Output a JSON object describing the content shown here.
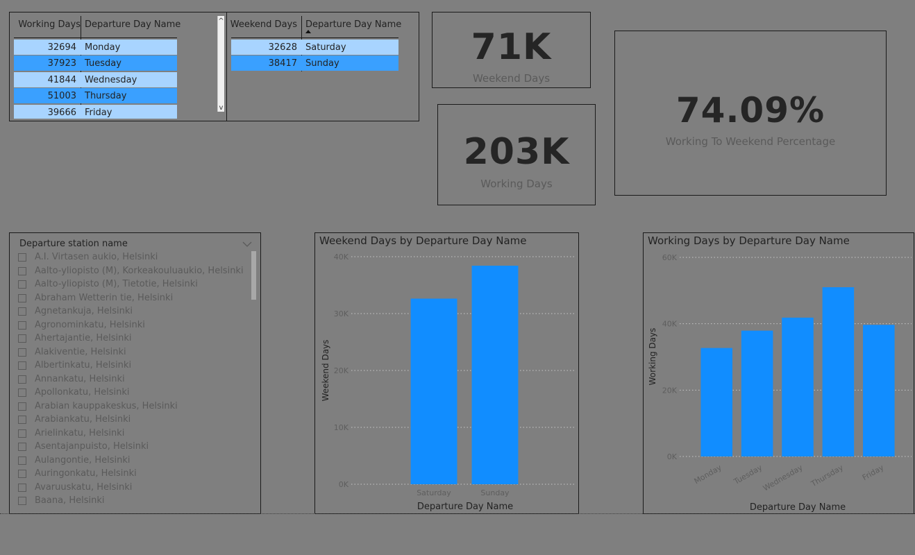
{
  "working_table": {
    "headers": [
      "Working Days",
      "Departure Day Name"
    ],
    "rows": [
      {
        "value": "32694",
        "day": "Monday"
      },
      {
        "value": "37923",
        "day": "Tuesday"
      },
      {
        "value": "41844",
        "day": "Wednesday"
      },
      {
        "value": "51003",
        "day": "Thursday"
      },
      {
        "value": "39666",
        "day": "Friday"
      }
    ],
    "scroll_up": "^",
    "scroll_down": "v"
  },
  "weekend_table": {
    "headers": [
      "Weekend Days",
      "Departure Day Name"
    ],
    "rows": [
      {
        "value": "32628",
        "day": "Saturday"
      },
      {
        "value": "38417",
        "day": "Sunday"
      }
    ]
  },
  "cards": {
    "weekend": {
      "value": "71K",
      "label": "Weekend Days"
    },
    "working": {
      "value": "203K",
      "label": "Working Days"
    },
    "percentage": {
      "value": "74.09%",
      "label": "Working To Weekend Percentage"
    }
  },
  "slicer": {
    "title": "Departure station name",
    "items": [
      "A.I. Virtasen aukio, Helsinki",
      "Aalto-yliopisto (M), Korkeakouluaukio, Helsinki",
      "Aalto-yliopisto (M), Tietotie, Helsinki",
      "Abraham Wetterin tie, Helsinki",
      "Agnetankuja, Helsinki",
      "Agronominkatu, Helsinki",
      "Ahertajantie, Helsinki",
      "Alakiventie, Helsinki",
      "Albertinkatu, Helsinki",
      "Annankatu, Helsinki",
      "Apollonkatu, Helsinki",
      "Arabian kauppakeskus, Helsinki",
      "Arabiankatu, Helsinki",
      "Arielinkatu, Helsinki",
      "Asentajanpuisto, Helsinki",
      "Aulangontie, Helsinki",
      "Auringonkatu, Helsinki",
      "Avaruuskatu, Helsinki",
      "Baana, Helsinki"
    ]
  },
  "chart_data": [
    {
      "type": "bar",
      "title": "Weekend Days by Departure Day Name",
      "xlabel": "Departure Day Name",
      "ylabel": "Weekend Days",
      "categories": [
        "Saturday",
        "Sunday"
      ],
      "values": [
        32628,
        38417
      ],
      "ylim": [
        0,
        40000
      ],
      "yticks": [
        "0K",
        "10K",
        "20K",
        "30K",
        "40K"
      ],
      "ytick_values": [
        0,
        10000,
        20000,
        30000,
        40000
      ],
      "bar_color": "#118dff",
      "grid": true
    },
    {
      "type": "bar",
      "title": "Working Days by Departure Day Name",
      "xlabel": "Departure Day Name",
      "ylabel": "Working Days",
      "categories": [
        "Monday",
        "Tuesday",
        "Wednesday",
        "Thursday",
        "Friday"
      ],
      "values": [
        32694,
        37923,
        41844,
        51003,
        39666
      ],
      "ylim": [
        0,
        60000
      ],
      "yticks": [
        "0K",
        "20K",
        "40K",
        "60K"
      ],
      "ytick_values": [
        0,
        20000,
        40000,
        60000
      ],
      "bar_color": "#118dff",
      "grid": true
    }
  ]
}
